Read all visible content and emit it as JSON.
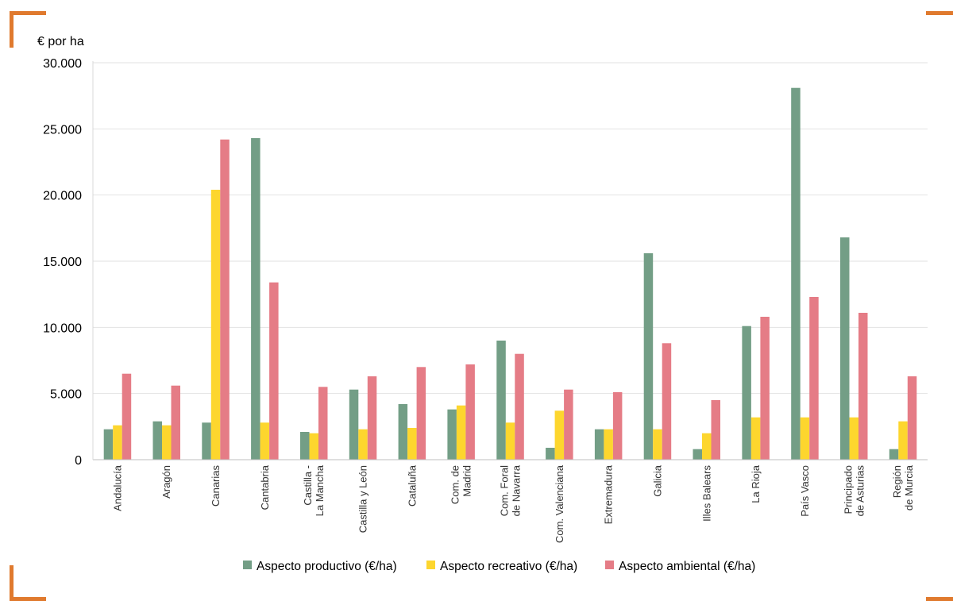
{
  "colors": {
    "productivo": "#739E86",
    "recreativo": "#FDD62E",
    "ambiental": "#E57C86",
    "frame": "#E07A2E",
    "grid": "#E2E2E2"
  },
  "chart_data": {
    "type": "bar",
    "ylabel": "€ por ha",
    "ylim": [
      0,
      30000
    ],
    "yticks": [
      0,
      5000,
      10000,
      15000,
      20000,
      25000,
      30000
    ],
    "ytick_labels": [
      "0",
      "5.000",
      "10.000",
      "15.000",
      "20.000",
      "25.000",
      "30.000"
    ],
    "grid": true,
    "legend_position": "bottom",
    "categories": [
      [
        "Andalucía"
      ],
      [
        "Aragón"
      ],
      [
        "Canarias"
      ],
      [
        "Cantabria"
      ],
      [
        "Castilla -",
        "La Mancha"
      ],
      [
        "Castilla y León"
      ],
      [
        "Cataluña"
      ],
      [
        "Com. de",
        "Madrid"
      ],
      [
        "Com. Foral",
        "de Navarra"
      ],
      [
        "Com. Valenciana"
      ],
      [
        "Extremadura"
      ],
      [
        "Galicia"
      ],
      [
        "Illes Balears"
      ],
      [
        "La Rioja"
      ],
      [
        "País Vasco"
      ],
      [
        "Principado",
        "de Asturias"
      ],
      [
        "Región",
        "de Murcia"
      ]
    ],
    "series": [
      {
        "name": "Aspecto productivo (€/ha)",
        "color_key": "productivo",
        "values": [
          2300,
          2900,
          2800,
          24300,
          2100,
          5300,
          4200,
          3800,
          9000,
          900,
          2300,
          15600,
          800,
          10100,
          28100,
          16800,
          800
        ]
      },
      {
        "name": "Aspecto recreativo (€/ha)",
        "color_key": "recreativo",
        "values": [
          2600,
          2600,
          20400,
          2800,
          2000,
          2300,
          2400,
          4100,
          2800,
          3700,
          2300,
          2300,
          2000,
          3200,
          3200,
          3200,
          2900
        ]
      },
      {
        "name": "Aspecto ambiental (€/ha)",
        "color_key": "ambiental",
        "values": [
          6500,
          5600,
          24200,
          13400,
          5500,
          6300,
          7000,
          7200,
          8000,
          5300,
          5100,
          8800,
          4500,
          10800,
          12300,
          11100,
          6300
        ]
      }
    ]
  }
}
